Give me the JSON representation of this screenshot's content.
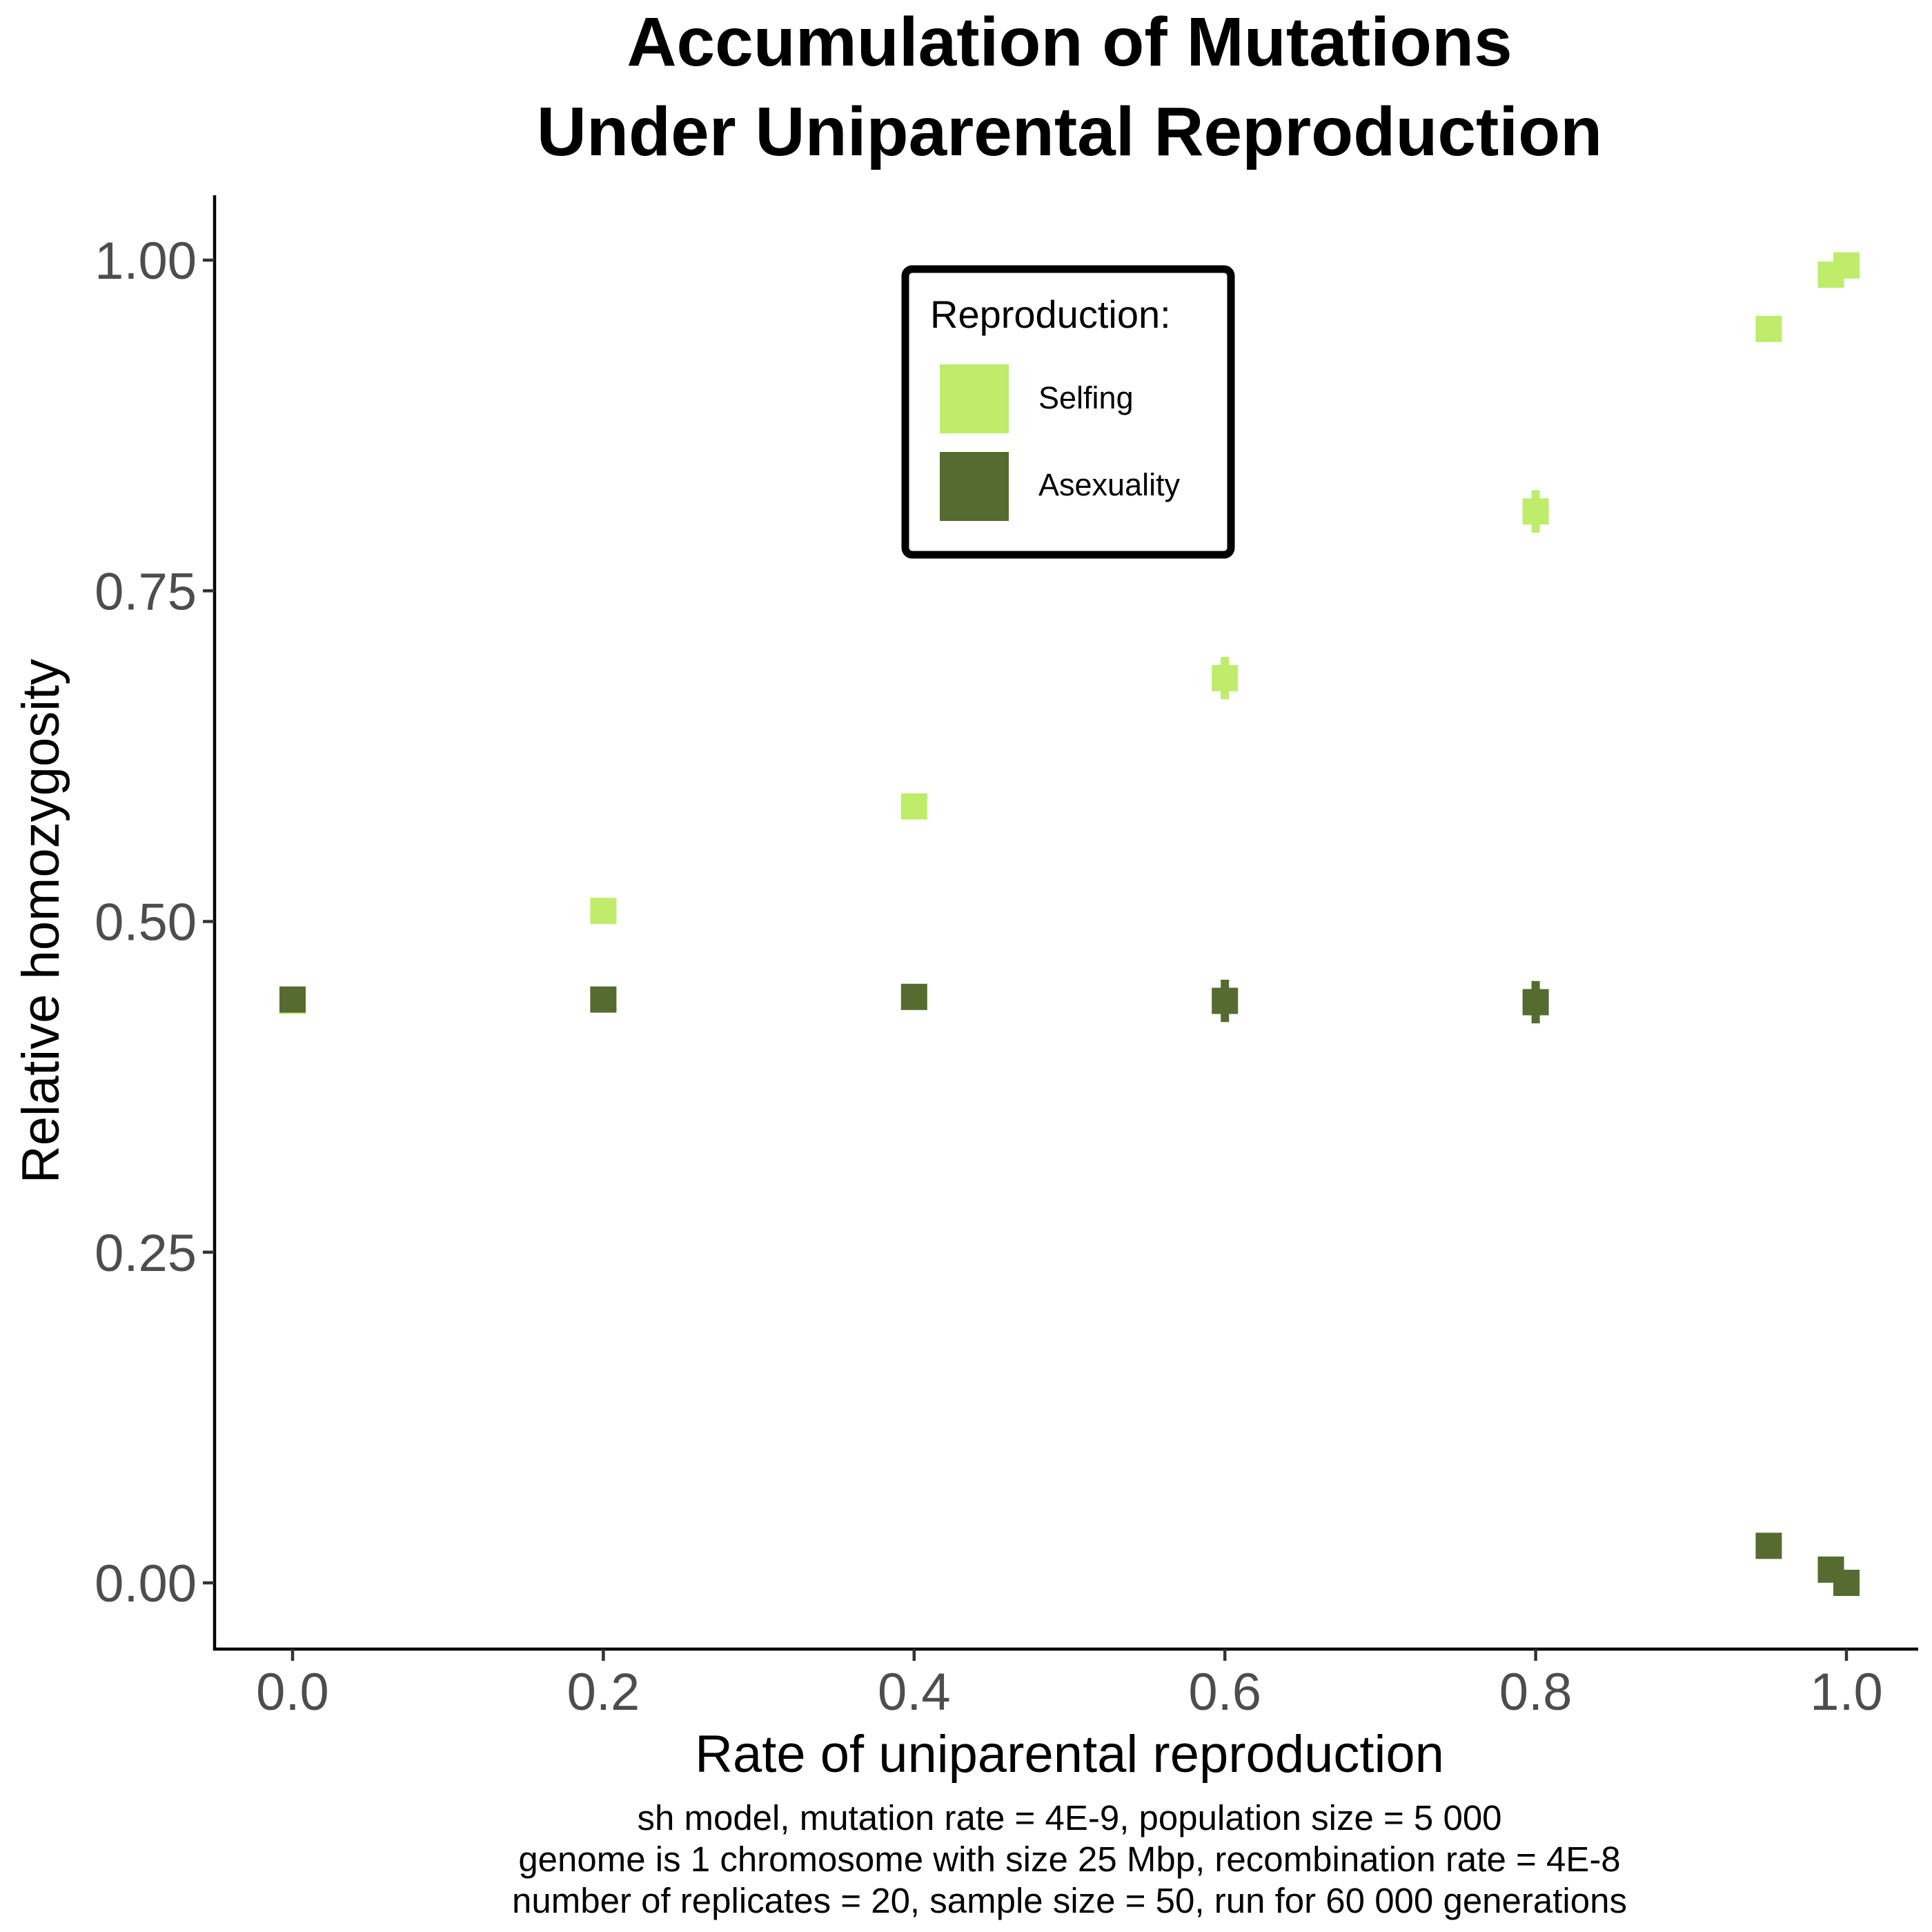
{
  "chart_data": {
    "type": "scatter",
    "title": [
      "Accumulation of Mutations",
      "Under Uniparental Reproduction"
    ],
    "xlabel": "Rate of uniparental reproduction",
    "ylabel": "Relative homozygosity",
    "caption": [
      "sh model, mutation rate = 4E-9, population size = 5 000",
      "genome is 1 chromosome with size 25 Mbp, recombination rate = 4E-8",
      "number of replicates = 20, sample size = 50, run for 60 000 generations"
    ],
    "xlim": [
      -0.05,
      1.05
    ],
    "ylim": [
      -0.05,
      1.05
    ],
    "x_ticks": [
      0.0,
      0.2,
      0.4,
      0.6,
      0.8,
      1.0
    ],
    "x_tick_labels": [
      "0.0",
      "0.2",
      "0.4",
      "0.6",
      "0.8",
      "1.0"
    ],
    "y_ticks": [
      0.0,
      0.25,
      0.5,
      0.75,
      1.0
    ],
    "y_tick_labels": [
      "0.00",
      "0.25",
      "0.50",
      "0.75",
      "1.00"
    ],
    "grid": false,
    "legend": {
      "title": "Reproduction:",
      "placement": "top-center"
    },
    "series": [
      {
        "name": "Selfing",
        "color": "#bfec6a",
        "points": [
          {
            "x": 0.0,
            "y": 0.44,
            "err": 0.005
          },
          {
            "x": 0.2,
            "y": 0.508,
            "err": 0.005
          },
          {
            "x": 0.4,
            "y": 0.587,
            "err": 0.005
          },
          {
            "x": 0.6,
            "y": 0.684,
            "err": 0.016
          },
          {
            "x": 0.8,
            "y": 0.81,
            "err": 0.016
          },
          {
            "x": 0.95,
            "y": 0.948,
            "err": 0.004
          },
          {
            "x": 0.99,
            "y": 0.989,
            "err": 0.003
          },
          {
            "x": 1.0,
            "y": 0.996,
            "err": 0.002
          }
        ]
      },
      {
        "name": "Asexuality",
        "color": "#556b2f",
        "points": [
          {
            "x": 0.0,
            "y": 0.441,
            "err": 0.005
          },
          {
            "x": 0.2,
            "y": 0.441,
            "err": 0.005
          },
          {
            "x": 0.4,
            "y": 0.443,
            "err": 0.005
          },
          {
            "x": 0.6,
            "y": 0.44,
            "err": 0.016
          },
          {
            "x": 0.8,
            "y": 0.439,
            "err": 0.016
          },
          {
            "x": 0.95,
            "y": 0.028,
            "err": 0.004
          },
          {
            "x": 0.99,
            "y": 0.01,
            "err": 0.003
          },
          {
            "x": 1.0,
            "y": 0.0,
            "err": 0.002
          }
        ]
      }
    ]
  }
}
